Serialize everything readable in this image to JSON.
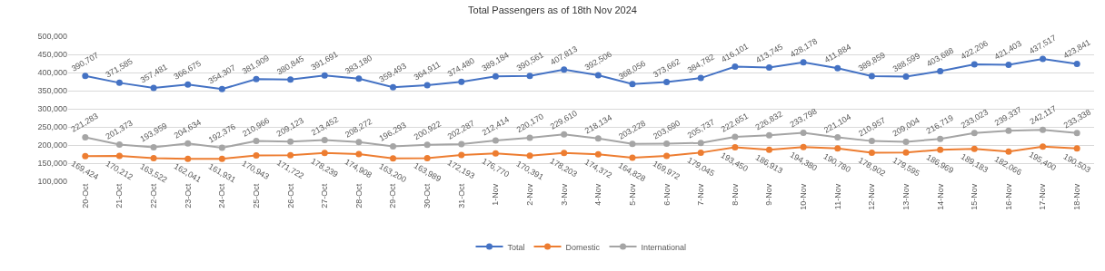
{
  "chart_data": {
    "type": "line",
    "title": "Total Passengers as of 18th Nov 2024",
    "categories": [
      "20-Oct",
      "21-Oct",
      "22-Oct",
      "23-Oct",
      "24-Oct",
      "25-Oct",
      "26-Oct",
      "27-Oct",
      "28-Oct",
      "29-Oct",
      "30-Oct",
      "31-Oct",
      "1-Nov",
      "2-Nov",
      "3-Nov",
      "4-Nov",
      "5-Nov",
      "6-Nov",
      "7-Nov",
      "8-Nov",
      "9-Nov",
      "10-Nov",
      "11-Nov",
      "12-Nov",
      "13-Nov",
      "14-Nov",
      "15-Nov",
      "16-Nov",
      "17-Nov",
      "18-Nov"
    ],
    "series": [
      {
        "name": "Total",
        "color": "#4472c4",
        "values": [
          390707,
          371585,
          357481,
          366675,
          354307,
          381909,
          380845,
          391691,
          383180,
          359493,
          364911,
          374480,
          389184,
          390561,
          407813,
          392506,
          368056,
          373662,
          384782,
          416101,
          413745,
          428178,
          411884,
          389859,
          388599,
          403688,
          422206,
          421403,
          437517,
          423841
        ],
        "value_labels": [
          "390,707",
          "371,585",
          "357,481",
          "366,675",
          "354,307",
          "381,909",
          "380,845",
          "391,691",
          "383,180",
          "359,493",
          "364,911",
          "374,480",
          "389,184",
          "390,561",
          "407,813",
          "392,506",
          "368,056",
          "373,662",
          "384,782",
          "416,101",
          "413,745",
          "428,178",
          "411,884",
          "389,859",
          "388,599",
          "403,688",
          "422,206",
          "421,403",
          "437,517",
          "423,841"
        ]
      },
      {
        "name": "Domestic",
        "color": "#ed7d31",
        "values": [
          169424,
          170212,
          163522,
          162041,
          161931,
          170943,
          171722,
          178239,
          174908,
          163200,
          163989,
          172193,
          176770,
          170391,
          178203,
          174372,
          164828,
          169972,
          179045,
          193450,
          186913,
          194380,
          190780,
          178902,
          179595,
          186969,
          189183,
          182066,
          195400,
          190503
        ],
        "value_labels": [
          "169,424",
          "170,212",
          "163,522",
          "162,041",
          "161,931",
          "170,943",
          "171,722",
          "178,239",
          "174,908",
          "163,200",
          "163,989",
          "172,193",
          "176,770",
          "170,391",
          "178,203",
          "174,372",
          "164,828",
          "169,972",
          "179,045",
          "193,450",
          "186,913",
          "194,380",
          "190,780",
          "178,902",
          "179,595",
          "186,969",
          "189,183",
          "182,066",
          "195,400",
          "190,503"
        ]
      },
      {
        "name": "International",
        "color": "#a5a5a5",
        "values": [
          221283,
          201373,
          193959,
          204634,
          192376,
          210966,
          209123,
          213452,
          208272,
          196293,
          200922,
          202287,
          212414,
          220170,
          229610,
          218134,
          203228,
          203690,
          205737,
          222651,
          226832,
          233798,
          221104,
          210957,
          209004,
          216719,
          233023,
          239337,
          242117,
          233338
        ],
        "value_labels": [
          "221,283",
          "201,373",
          "193,959",
          "204,634",
          "192,376",
          "210,966",
          "209,123",
          "213,452",
          "208,272",
          "196,293",
          "200,922",
          "202,287",
          "212,414",
          "220,170",
          "229,610",
          "218,134",
          "203,228",
          "203,690",
          "205,737",
          "222,651",
          "226,832",
          "233,798",
          "221,104",
          "210,957",
          "209,004",
          "216,719",
          "233,023",
          "239,337",
          "242,117",
          "233,338"
        ]
      }
    ],
    "ylim": [
      100000,
      500000
    ],
    "yticks": [
      {
        "value": 100000,
        "label": "100,000"
      },
      {
        "value": 150000,
        "label": "150,000"
      },
      {
        "value": 200000,
        "label": "200,000"
      },
      {
        "value": 250000,
        "label": "250,000"
      },
      {
        "value": 300000,
        "label": "300,000"
      },
      {
        "value": 350000,
        "label": "350,000"
      },
      {
        "value": 400000,
        "label": "400,000"
      },
      {
        "value": 450000,
        "label": "450,000"
      },
      {
        "value": 500000,
        "label": "500,000"
      }
    ],
    "grid": "y",
    "legend": "bottom",
    "marker": "circle",
    "line_style": "solid"
  }
}
